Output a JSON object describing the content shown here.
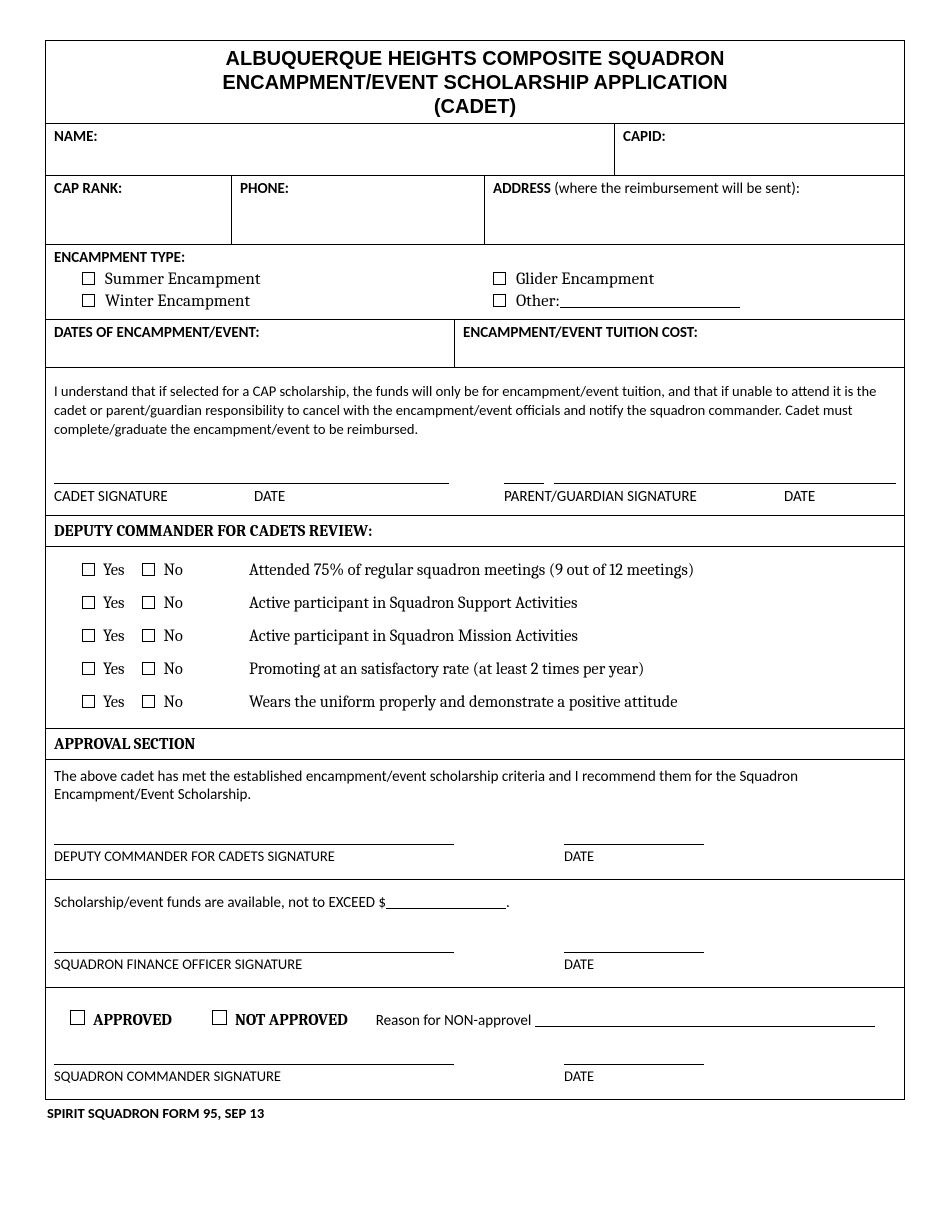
{
  "header": {
    "line1": "ALBUQUERQUE HEIGHTS COMPOSITE SQUADRON",
    "line2": "ENCAMPMENT/EVENT SCHOLARSHIP APPLICATION",
    "line3": "(CADET)"
  },
  "fields": {
    "name_label": "NAME:",
    "capid_label": "CAPID:",
    "caprank_label": "CAP RANK:",
    "phone_label": "PHONE:",
    "address_label": "ADDRESS",
    "address_note": " (where the reimbursement will be sent):",
    "enc_type_label": "ENCAMPMENT TYPE:",
    "enc_types": {
      "summer": "Summer Encampment",
      "winter": "Winter Encampment",
      "glider": "Glider Encampment",
      "other": "Other:"
    },
    "dates_label": "DATES OF ENCAMPMENT/EVENT:",
    "tuition_label": "ENCAMPMENT/EVENT TUITION COST:"
  },
  "understand": {
    "text": "I understand that if selected for a CAP scholarship, the funds will only be for encampment/event tuition, and that if unable to attend it is the cadet or parent/guardian responsibility to cancel with the encampment/event officials and notify the squadron commander. Cadet must complete/graduate the encampment/event to be reimbursed.",
    "cadet_sig": "CADET SIGNATURE",
    "date": "DATE",
    "parent_sig": "PARENT/GUARDIAN SIGNATURE"
  },
  "review": {
    "heading": "DEPUTY COMMANDER FOR CADETS REVIEW:",
    "yes": "Yes",
    "no": "No",
    "items": [
      "Attended 75% of regular squadron meetings (9 out of 12 meetings)",
      "Active participant in Squadron Support Activities",
      "Active participant in Squadron Mission Activities",
      "Promoting at an satisfactory rate (at least 2 times per year)",
      "Wears the uniform properly and demonstrate a positive attitude"
    ]
  },
  "approval": {
    "heading": "APPROVAL SECTION",
    "recommend_text": "The above cadet has met the established encampment/event scholarship criteria and I recommend them for the Squadron Encampment/Event Scholarship.",
    "dc_sig": "DEPUTY COMMANDER FOR CADETS SIGNATURE",
    "date": "DATE",
    "funds_text_pre": "Scholarship/event funds are available, not to EXCEED $",
    "funds_text_post": ".",
    "finance_sig": "SQUADRON FINANCE OFFICER SIGNATURE",
    "approved": "APPROVED",
    "not_approved": "NOT APPROVED",
    "reason_label": "Reason for NON-approvel ",
    "commander_sig": "SQUADRON COMMANDER SIGNATURE"
  },
  "footer": "SPIRIT SQUADRON FORM 95, SEP 13"
}
